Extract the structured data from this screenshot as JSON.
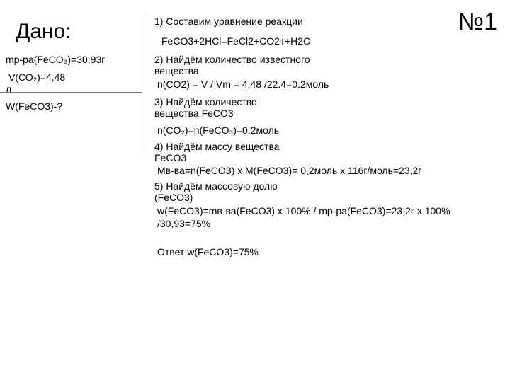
{
  "problemNumber": "№1",
  "givenLabel": "Дано:",
  "given": {
    "line1": "mр-ра(FeCO₃)=30,93г",
    "line2a": "V(СО₂)=4,48",
    "line2b": "л",
    "unknown": "W(FeCO3)-?"
  },
  "steps": {
    "s1": {
      "heading": "1) Составим уравнение реакции",
      "body": "FeCO3+2HCl=FeCl2+CO2↑+H2O"
    },
    "s2": {
      "heading": "2) Найдём количество известного вещества",
      "body": "n(CO2) = V / Vm = 4,48 /22.4=0.2моль"
    },
    "s3": {
      "heading": "3) Найдём количество вещества FeCO3",
      "body": "n(CO₂)=n(FeCO₃)=0.2моль"
    },
    "s4": {
      "heading": "4) Найдём массу вещества FeCO3",
      "body": "Mв-ва=n(FeCO3) x M(FeCO3)= 0,2моль х  116г/моль=23,2г"
    },
    "s5": {
      "heading": "5) Найдём массовую долю (FeCO3)",
      "body1": "w(FeCO3)=mв-ва(FeCO3) х 100% / mр-ра(FeCO3)=23,2г х 100%",
      "body2": "/30,93=75%"
    }
  },
  "answer": "Ответ:w(FeCO3)=75%",
  "colors": {
    "background": "#ffffff",
    "text": "#000000",
    "divider": "#808080"
  }
}
